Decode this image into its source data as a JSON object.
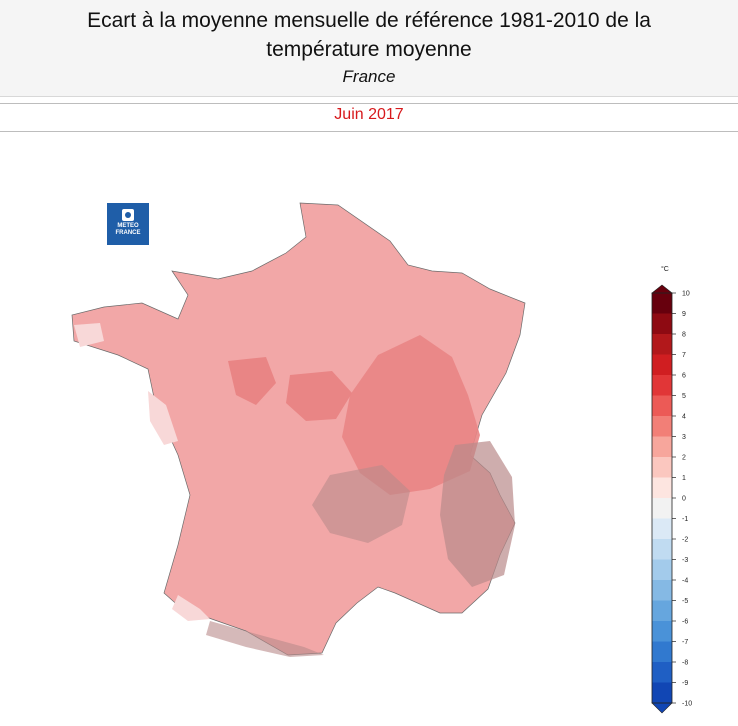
{
  "header": {
    "title_line1": "Ecart à la moyenne mensuelle de référence 1981-2010 de la",
    "title_line2": "température moyenne",
    "region": "France"
  },
  "period": "Juin 2017",
  "logo": {
    "line1": "METEO",
    "line2": "FRANCE"
  },
  "legend": {
    "unit": "°C",
    "values": [
      10,
      9,
      8,
      7,
      6,
      5,
      4,
      3,
      2,
      1,
      0,
      -1,
      -2,
      -3,
      -4,
      -5,
      -6,
      -7,
      -8,
      -9,
      -10
    ],
    "colors": [
      "#67000d",
      "#8e0a12",
      "#b2181b",
      "#d01e21",
      "#e13637",
      "#ec5a56",
      "#f27f77",
      "#f7a69c",
      "#fbc7bf",
      "#fde5e0",
      "#f2f2f2",
      "#dbe9f6",
      "#c0dbf1",
      "#a3cbeb",
      "#85b9e4",
      "#66a6de",
      "#4a92d8",
      "#3179cf",
      "#1f5fc4",
      "#1146b4"
    ]
  },
  "colors": {
    "base_anomaly": "#f2a7a7",
    "warm_anomaly": "#e98585",
    "cool_anomaly": "#f8d8d8",
    "relief_shading": "#b98a8a",
    "title_red": "#d7191c"
  }
}
